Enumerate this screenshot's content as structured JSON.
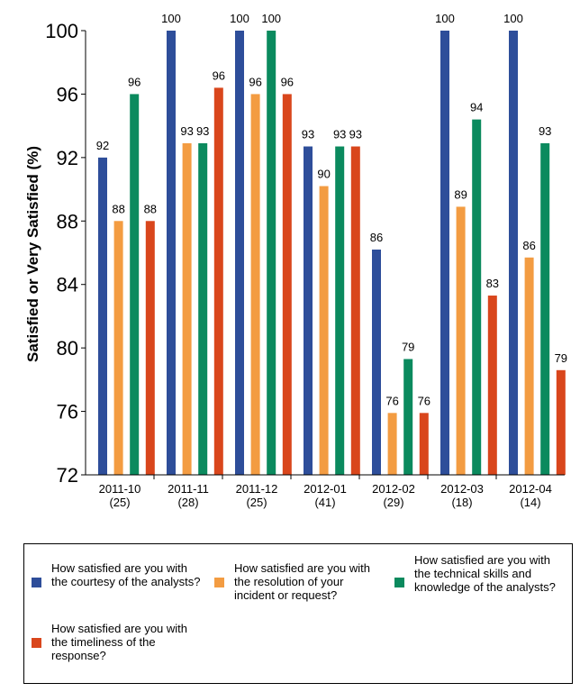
{
  "chart_data": {
    "type": "bar",
    "title": "",
    "xlabel": "",
    "ylabel": "Satisfied or Very Satisfied (%)",
    "ylim": [
      72,
      100
    ],
    "yticks": [
      72,
      76,
      80,
      84,
      88,
      92,
      96,
      100
    ],
    "categories": [
      {
        "period": "2011-10",
        "count": "(25)"
      },
      {
        "period": "2011-11",
        "count": "(28)"
      },
      {
        "period": "2011-12",
        "count": "(25)"
      },
      {
        "period": "2012-01",
        "count": "(41)"
      },
      {
        "period": "2012-02",
        "count": "(29)"
      },
      {
        "period": "2012-03",
        "count": "(18)"
      },
      {
        "period": "2012-04",
        "count": "(14)"
      }
    ],
    "series": [
      {
        "name": "How satisfied are you with the courtesy of the analysts?",
        "color": "#2e4e9a",
        "values": [
          92,
          100,
          100,
          92.7,
          86.2,
          100,
          100
        ],
        "labels": [
          "92",
          "100",
          "100",
          "93",
          "86",
          "100",
          "100"
        ]
      },
      {
        "name": "How satisfied are you with the resolution of your incident or request?",
        "color": "#f39c42",
        "values": [
          88,
          92.9,
          96,
          90.2,
          75.9,
          88.9,
          85.7
        ],
        "labels": [
          "88",
          "93",
          "96",
          "90",
          "76",
          "89",
          "86"
        ]
      },
      {
        "name": "How satisfied are you with the technical skills and knowledge of the analysts?",
        "color": "#0b8a5e",
        "values": [
          96,
          92.9,
          100,
          92.7,
          79.3,
          94.4,
          92.9
        ],
        "labels": [
          "96",
          "93",
          "100",
          "93",
          "79",
          "94",
          "93"
        ]
      },
      {
        "name": "How satisfied are you with the timeliness of the response?",
        "color": "#d9461c",
        "values": [
          88,
          96.4,
          96,
          92.7,
          75.9,
          83.3,
          78.6
        ],
        "labels": [
          "88",
          "96",
          "96",
          "93",
          "76",
          "83",
          "79"
        ]
      }
    ],
    "legend_position": "bottom"
  }
}
